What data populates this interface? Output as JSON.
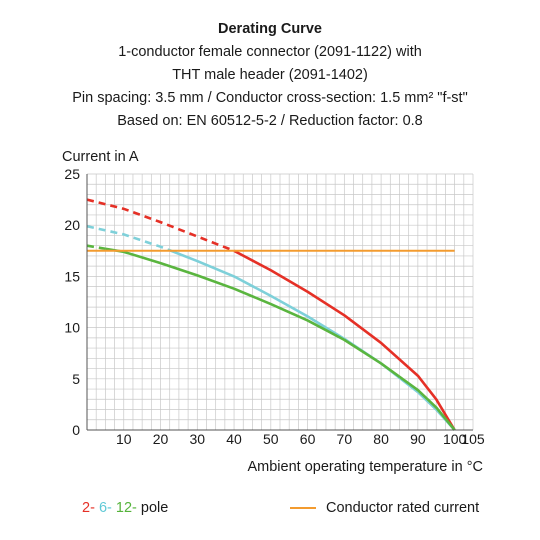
{
  "header": {
    "title": "Derating Curve",
    "line1": "1-conductor female connector (2091-1122) with",
    "line2": "THT male header (2091-1402)",
    "line3": "Pin spacing: 3.5 mm / Conductor cross-section: 1.5 mm² \"f-st\"",
    "line4": "Based on: EN 60512-5-2 / Reduction factor: 0.8"
  },
  "legend": {
    "pole_2": "2-",
    "pole_6": "6-",
    "pole_12": "12-",
    "pole_suffix": "pole",
    "rated": "Conductor rated current"
  },
  "colors": {
    "red": "#e53026",
    "blue": "#7ed0d9",
    "green": "#5ab53f",
    "orange": "#f39b2f",
    "grid": "#c8c8c8"
  },
  "chart_data": {
    "type": "line",
    "ylabel": "Current in A",
    "xlabel": "Ambient operating temperature in °C",
    "xlim": [
      0,
      105
    ],
    "ylim": [
      0,
      25
    ],
    "x_ticks": [
      10,
      20,
      30,
      40,
      50,
      60,
      70,
      80,
      90,
      100,
      105
    ],
    "y_ticks": [
      0,
      5,
      10,
      15,
      20,
      25
    ],
    "grid": true,
    "series": [
      {
        "name": "2-pole",
        "color": "#e53026",
        "dashed_until_x": 40,
        "x": [
          0,
          10,
          20,
          30,
          40,
          50,
          60,
          70,
          80,
          90,
          95,
          100
        ],
        "y": [
          22.5,
          21.6,
          20.3,
          18.9,
          17.5,
          15.6,
          13.5,
          11.2,
          8.5,
          5.3,
          3.0,
          0
        ]
      },
      {
        "name": "6-pole",
        "color": "#7ed0d9",
        "dashed_until_x": 22,
        "x": [
          0,
          10,
          20,
          30,
          40,
          50,
          60,
          70,
          80,
          90,
          95,
          100
        ],
        "y": [
          19.9,
          19.1,
          17.9,
          16.5,
          15.0,
          13.1,
          11.1,
          8.9,
          6.5,
          3.7,
          2.0,
          0
        ]
      },
      {
        "name": "12-pole",
        "color": "#5ab53f",
        "dashed_until_x": 5,
        "x": [
          0,
          10,
          20,
          30,
          40,
          50,
          60,
          70,
          80,
          90,
          95,
          100
        ],
        "y": [
          18.0,
          17.4,
          16.3,
          15.1,
          13.8,
          12.3,
          10.7,
          8.8,
          6.5,
          3.9,
          2.2,
          0
        ]
      },
      {
        "name": "Conductor rated current",
        "color": "#f39b2f",
        "x": [
          0,
          100
        ],
        "y": [
          17.5,
          17.5
        ]
      }
    ]
  }
}
